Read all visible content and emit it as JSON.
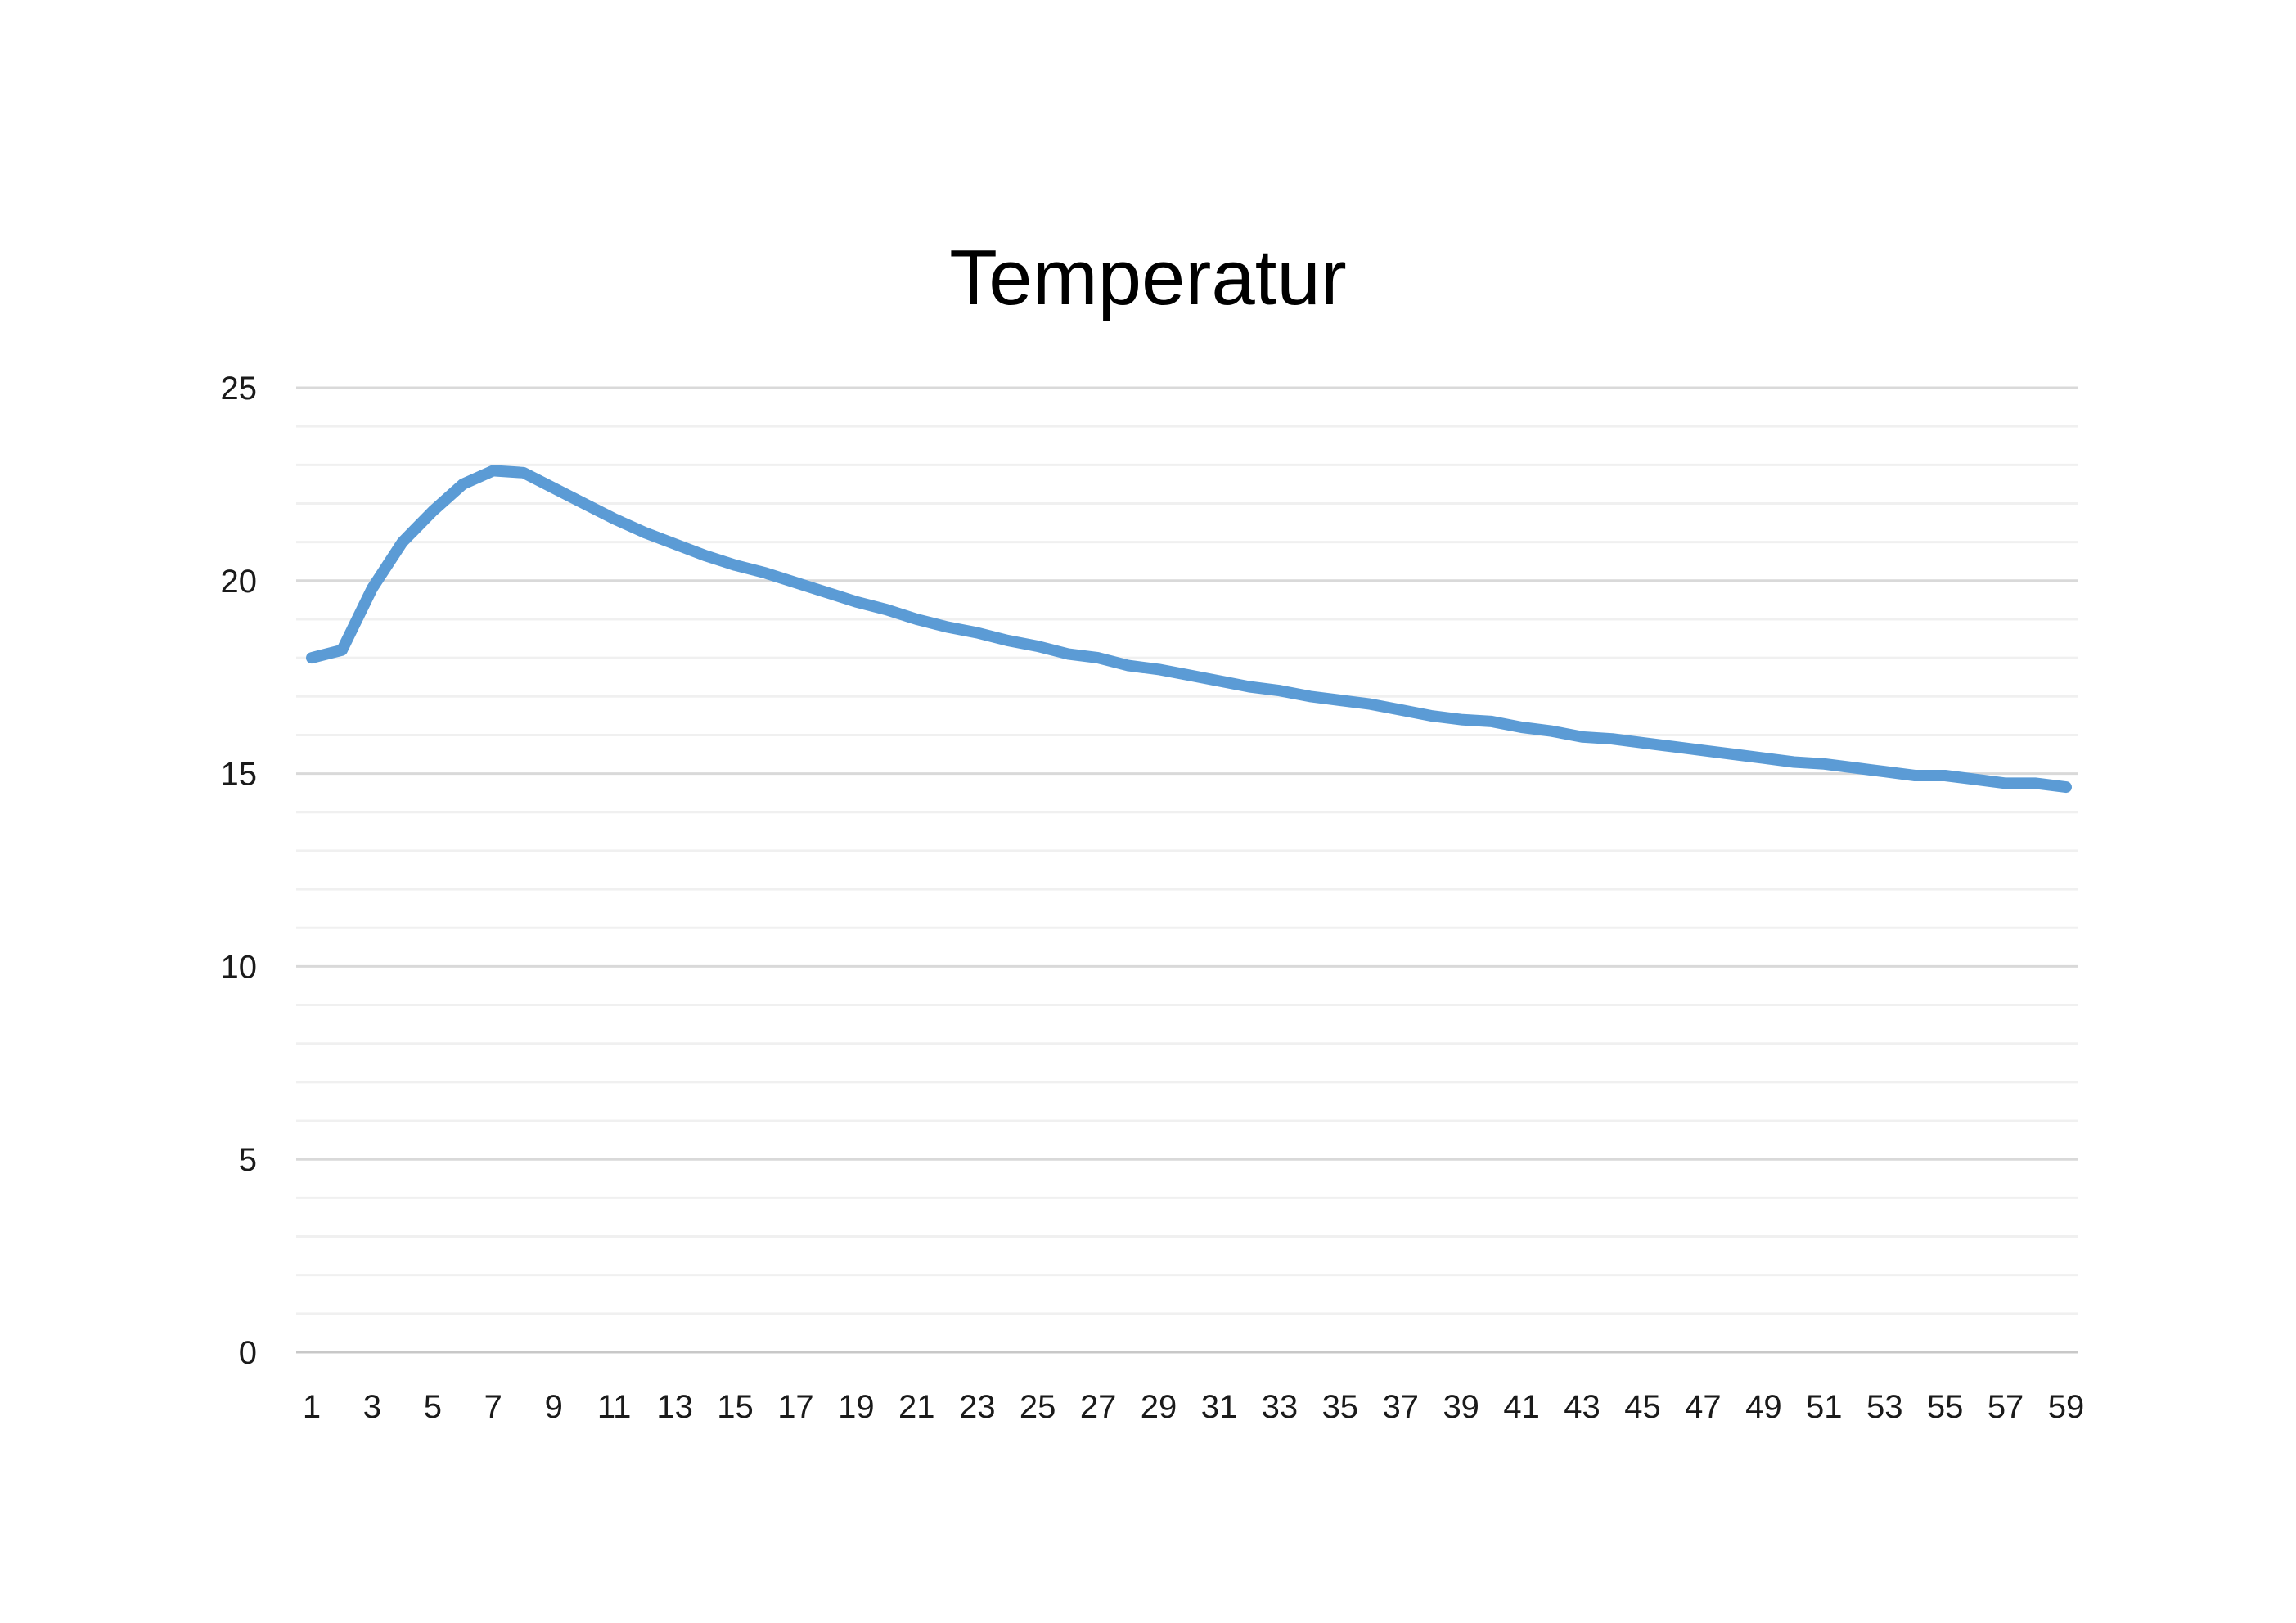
{
  "chart_data": {
    "type": "line",
    "title": "Temperatur",
    "xlabel": "",
    "ylabel": "",
    "x": [
      1,
      2,
      3,
      4,
      5,
      6,
      7,
      8,
      9,
      10,
      11,
      12,
      13,
      14,
      15,
      16,
      17,
      18,
      19,
      20,
      21,
      22,
      23,
      24,
      25,
      26,
      27,
      28,
      29,
      30,
      31,
      32,
      33,
      34,
      35,
      36,
      37,
      38,
      39,
      40,
      41,
      42,
      43,
      44,
      45,
      46,
      47,
      48,
      49,
      50,
      51,
      52,
      53,
      54,
      55,
      56,
      57,
      58,
      59
    ],
    "x_tick_labels": [
      "1",
      "3",
      "5",
      "7",
      "9",
      "11",
      "13",
      "15",
      "17",
      "19",
      "21",
      "23",
      "25",
      "27",
      "29",
      "31",
      "33",
      "35",
      "37",
      "39",
      "41",
      "43",
      "45",
      "47",
      "49",
      "51",
      "53",
      "55",
      "57",
      "59"
    ],
    "y_tick_labels": [
      "0",
      "5",
      "10",
      "15",
      "20",
      "25"
    ],
    "ylim": [
      0,
      25
    ],
    "y_major_step": 5,
    "y_minor_step": 1,
    "grid": true,
    "legend": "none",
    "series": [
      {
        "color": "#5B9BD5",
        "values": [
          18.0,
          18.2,
          19.8,
          21.0,
          21.8,
          22.5,
          22.85,
          22.8,
          22.4,
          22.0,
          21.6,
          21.25,
          20.95,
          20.65,
          20.4,
          20.2,
          19.95,
          19.7,
          19.45,
          19.25,
          19.0,
          18.8,
          18.65,
          18.45,
          18.3,
          18.1,
          18.0,
          17.8,
          17.7,
          17.55,
          17.4,
          17.25,
          17.15,
          17.0,
          16.9,
          16.8,
          16.65,
          16.5,
          16.4,
          16.35,
          16.2,
          16.1,
          15.95,
          15.9,
          15.8,
          15.7,
          15.6,
          15.5,
          15.4,
          15.3,
          15.25,
          15.15,
          15.05,
          14.95,
          14.95,
          14.85,
          14.75,
          14.75,
          14.65
        ]
      }
    ]
  }
}
